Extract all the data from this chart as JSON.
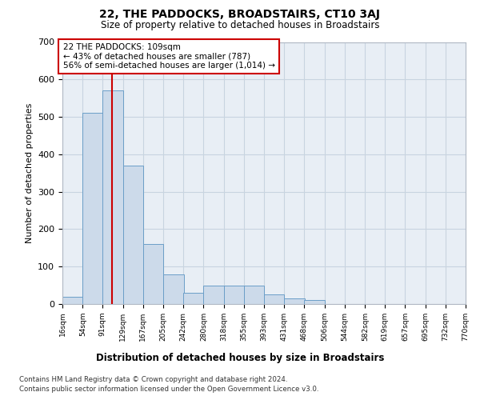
{
  "title": "22, THE PADDOCKS, BROADSTAIRS, CT10 3AJ",
  "subtitle": "Size of property relative to detached houses in Broadstairs",
  "xlabel": "Distribution of detached houses by size in Broadstairs",
  "ylabel": "Number of detached properties",
  "footer_line1": "Contains HM Land Registry data © Crown copyright and database right 2024.",
  "footer_line2": "Contains public sector information licensed under the Open Government Licence v3.0.",
  "annotation_line1": "22 THE PADDOCKS: 109sqm",
  "annotation_line2": "← 43% of detached houses are smaller (787)",
  "annotation_line3": "56% of semi-detached houses are larger (1,014) →",
  "property_size": 109,
  "bin_edges": [
    16,
    54,
    91,
    129,
    167,
    205,
    242,
    280,
    318,
    355,
    393,
    431,
    468,
    506,
    544,
    582,
    619,
    657,
    695,
    732,
    770
  ],
  "bin_counts": [
    20,
    510,
    570,
    370,
    160,
    80,
    30,
    50,
    50,
    50,
    25,
    15,
    10,
    0,
    0,
    0,
    0,
    0,
    0,
    0
  ],
  "bar_color": "#ccdaea",
  "bar_edge_color": "#6b9ec8",
  "red_line_color": "#cc0000",
  "annotation_box_edge_color": "#cc0000",
  "grid_color": "#c8d4e0",
  "background_color": "#e8eef5",
  "ylim": [
    0,
    700
  ],
  "yticks": [
    0,
    100,
    200,
    300,
    400,
    500,
    600,
    700
  ]
}
